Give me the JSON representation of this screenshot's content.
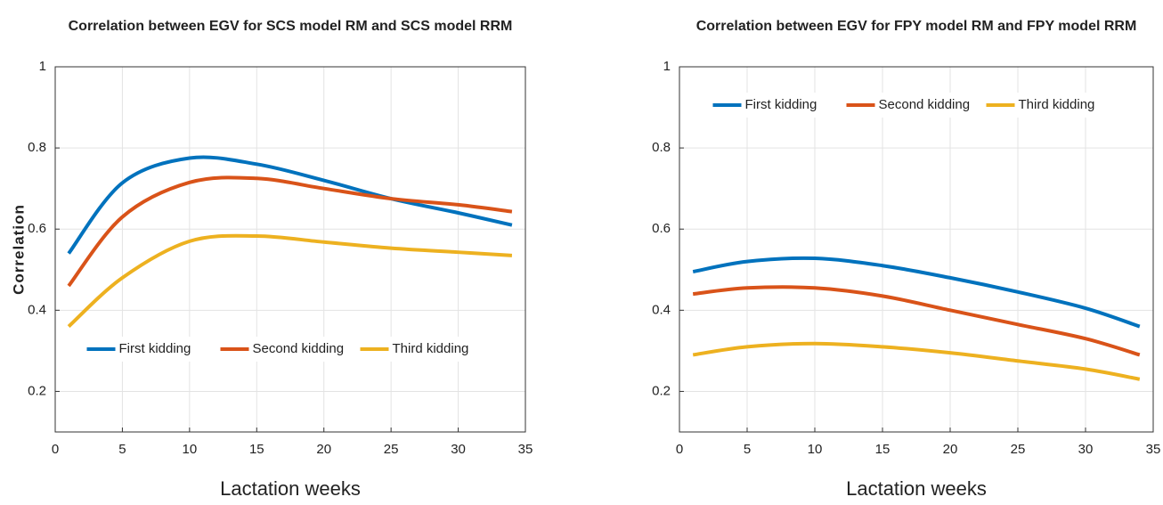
{
  "chart_data": [
    {
      "type": "line",
      "title": "Correlation between EGV for SCS model RM and SCS model RRM",
      "x_label": "Lactation weeks",
      "y_label": "Correlation",
      "x": [
        1,
        5,
        10,
        15,
        20,
        25,
        30,
        34
      ],
      "series": [
        {
          "name": "First kidding",
          "color": "#0072bd",
          "values": [
            0.54,
            0.714,
            0.775,
            0.76,
            0.72,
            0.675,
            0.64,
            0.61
          ]
        },
        {
          "name": "Second kidding",
          "color": "#d95319",
          "values": [
            0.46,
            0.63,
            0.715,
            0.725,
            0.7,
            0.675,
            0.66,
            0.643
          ]
        },
        {
          "name": "Third kidding",
          "color": "#edb120",
          "values": [
            0.36,
            0.48,
            0.57,
            0.583,
            0.568,
            0.553,
            0.543,
            0.535
          ]
        }
      ],
      "xlim": [
        0,
        35
      ],
      "xticks": [
        0,
        5,
        10,
        15,
        20,
        25,
        30,
        35
      ],
      "ylim": [
        0.1,
        1
      ],
      "yticks": [
        0.2,
        0.4,
        0.6,
        0.8,
        1
      ],
      "grid": true,
      "legend": "lower center"
    },
    {
      "type": "line",
      "title": "Correlation between EGV for FPY model RM and FPY model RRM",
      "x_label": "Lactation weeks",
      "x": [
        1,
        5,
        10,
        15,
        20,
        25,
        30,
        34
      ],
      "series": [
        {
          "name": "First kidding",
          "color": "#0072bd",
          "values": [
            0.495,
            0.52,
            0.528,
            0.51,
            0.48,
            0.445,
            0.405,
            0.36
          ]
        },
        {
          "name": "Second kidding",
          "color": "#d95319",
          "values": [
            0.44,
            0.455,
            0.455,
            0.435,
            0.4,
            0.365,
            0.33,
            0.29
          ]
        },
        {
          "name": "Third kidding",
          "color": "#edb120",
          "values": [
            0.29,
            0.31,
            0.318,
            0.31,
            0.295,
            0.275,
            0.255,
            0.23
          ]
        }
      ],
      "xlim": [
        0,
        35
      ],
      "xticks": [
        0,
        5,
        10,
        15,
        20,
        25,
        30,
        35
      ],
      "ylim": [
        0.1,
        1
      ],
      "yticks": [
        0.2,
        0.4,
        0.6,
        0.8,
        1
      ],
      "grid": true,
      "legend": "upper center"
    }
  ]
}
